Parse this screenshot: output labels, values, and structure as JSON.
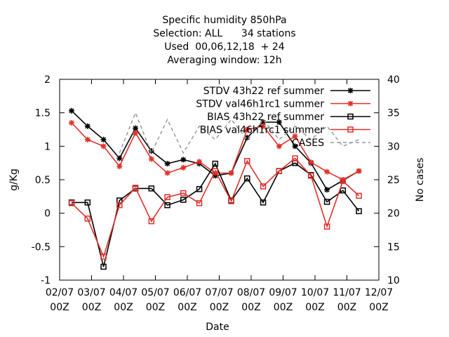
{
  "chart_data": {
    "type": "line",
    "title_lines": [
      "Specific humidity 850hPa",
      "Selection: ALL      34 stations",
      "Used  00,06,12,18  + 24",
      "Averaging window: 12h"
    ],
    "xlabel": "Date",
    "ylabel": "g/Kg",
    "y2label": "No cases",
    "x_ticks": [
      {
        "x": 0,
        "l1": "02/07",
        "l2": "00Z"
      },
      {
        "x": 1,
        "l1": "03/07",
        "l2": "00Z"
      },
      {
        "x": 2,
        "l1": "04/07",
        "l2": "00Z"
      },
      {
        "x": 3,
        "l1": "05/07",
        "l2": "00Z"
      },
      {
        "x": 4,
        "l1": "06/07",
        "l2": "00Z"
      },
      {
        "x": 5,
        "l1": "07/07",
        "l2": "00Z"
      },
      {
        "x": 6,
        "l1": "08/07",
        "l2": "00Z"
      },
      {
        "x": 7,
        "l1": "09/07",
        "l2": "00Z"
      },
      {
        "x": 8,
        "l1": "10/07",
        "l2": "00Z"
      },
      {
        "x": 9,
        "l1": "11/07",
        "l2": "00Z"
      },
      {
        "x": 10,
        "l1": "12/07",
        "l2": "00Z"
      }
    ],
    "xlim": [
      0,
      10
    ],
    "ylim": [
      -1,
      2
    ],
    "y_ticks": [
      "-1",
      "-0.5",
      "0",
      "0.5",
      "1",
      "1.5",
      "2"
    ],
    "y2lim": [
      10,
      40
    ],
    "y2_ticks": [
      "10",
      "15",
      "20",
      "25",
      "30",
      "35",
      "40"
    ],
    "x": [
      0.375,
      0.875,
      1.375,
      1.875,
      2.375,
      2.875,
      3.375,
      3.875,
      4.375,
      4.875,
      5.375,
      5.875,
      6.375,
      6.875,
      7.375,
      7.875,
      8.375,
      8.875,
      9.375,
      9.875
    ],
    "legend_position": "top-right",
    "series": [
      {
        "name": "STDV 43h22_ref_summer",
        "label_display": "STDV 43h22 ref summer",
        "color": "#000000",
        "marker": "star",
        "axis": "y1",
        "values": [
          1.53,
          1.3,
          1.1,
          0.82,
          1.27,
          0.93,
          0.74,
          0.8,
          0.74,
          0.56,
          0.6,
          1.13,
          1.36,
          1.36,
          1.0,
          0.75,
          0.35,
          0.49,
          0.63,
          null
        ]
      },
      {
        "name": "STDV val46h1rc1_summer",
        "label_display": "STDV val46h1rc1 summer",
        "color": "#e0302a",
        "marker": "star",
        "axis": "y1",
        "values": [
          1.35,
          1.1,
          1.0,
          0.7,
          1.2,
          0.81,
          0.6,
          0.68,
          0.77,
          0.6,
          0.6,
          1.25,
          1.3,
          1.0,
          1.15,
          0.76,
          0.62,
          0.5,
          0.63,
          null
        ]
      },
      {
        "name": "BIAS 43h22_ref_summer",
        "label_display": "BIAS 43h22 ref summer",
        "color": "#000000",
        "marker": "square",
        "axis": "y1",
        "values": [
          0.16,
          0.16,
          -0.8,
          0.19,
          0.37,
          0.37,
          0.12,
          0.2,
          0.36,
          0.74,
          0.19,
          0.52,
          0.16,
          0.63,
          0.75,
          0.57,
          0.17,
          0.34,
          0.03,
          null
        ]
      },
      {
        "name": "BIAS val46h1rc1_summer",
        "label_display": "BIAS val46h1rc1 summer",
        "color": "#e0302a",
        "marker": "square",
        "axis": "y1",
        "values": [
          0.15,
          -0.08,
          -0.65,
          0.12,
          0.38,
          -0.12,
          0.24,
          0.3,
          0.15,
          0.63,
          0.18,
          0.78,
          0.4,
          0.63,
          0.82,
          0.56,
          -0.2,
          0.48,
          0.26,
          null
        ]
      },
      {
        "name": "CASES",
        "label_display": "CASES",
        "color": "#999999",
        "marker": "none",
        "axis": "y2",
        "dashed": true,
        "values": [
          null,
          null,
          null,
          29,
          35,
          29,
          34,
          29,
          33,
          31,
          34,
          31,
          34,
          31,
          33,
          31,
          33,
          30,
          31,
          null
        ]
      }
    ]
  }
}
